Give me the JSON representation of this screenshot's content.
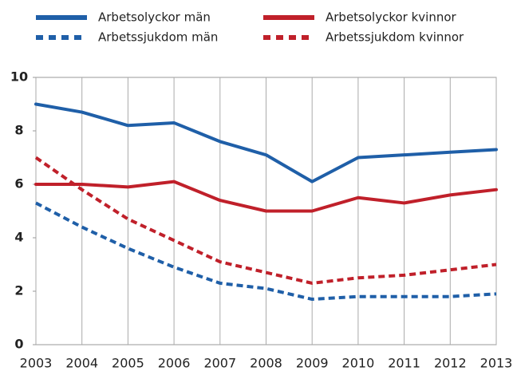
{
  "chart_data": {
    "type": "line",
    "x": [
      2003,
      2004,
      2005,
      2006,
      2007,
      2008,
      2009,
      2010,
      2011,
      2012,
      2013
    ],
    "xlim": [
      2003,
      2013
    ],
    "xticks": [
      2003,
      2004,
      2005,
      2006,
      2007,
      2008,
      2009,
      2010,
      2011,
      2012,
      2013
    ],
    "ylim": [
      0,
      10
    ],
    "yticks": [
      0,
      2,
      4,
      6,
      8,
      10
    ],
    "grid": "x",
    "series": [
      {
        "name": "Arbetsolyckor män",
        "color": "#1f5fa8",
        "dashed": false,
        "values": [
          9.0,
          8.7,
          8.2,
          8.3,
          7.6,
          7.1,
          6.1,
          7.0,
          7.1,
          7.2,
          7.3
        ]
      },
      {
        "name": "Arbetsolyckor kvinnor",
        "color": "#c0202a",
        "dashed": false,
        "values": [
          6.0,
          6.0,
          5.9,
          6.1,
          5.4,
          5.0,
          5.0,
          5.5,
          5.3,
          5.6,
          5.8
        ]
      },
      {
        "name": "Arbetssjukdom män",
        "color": "#1f5fa8",
        "dashed": true,
        "values": [
          5.3,
          4.4,
          3.6,
          2.9,
          2.3,
          2.1,
          1.7,
          1.8,
          1.8,
          1.8,
          1.9
        ]
      },
      {
        "name": "Arbetssjukdom kvinnor",
        "color": "#c0202a",
        "dashed": true,
        "values": [
          7.0,
          5.8,
          4.7,
          3.9,
          3.1,
          2.7,
          2.3,
          2.5,
          2.6,
          2.8,
          3.0
        ]
      }
    ]
  }
}
